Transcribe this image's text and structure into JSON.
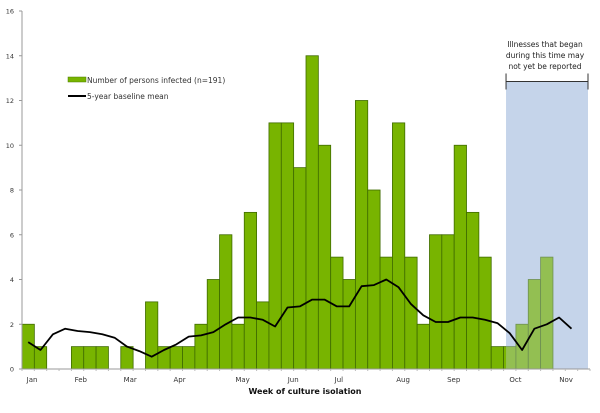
{
  "chart_data": {
    "type": "bar",
    "title": "",
    "xlabel": "Week of culture isolation",
    "ylabel": "",
    "ylim": [
      0,
      16
    ],
    "yticks": [
      0,
      2,
      4,
      6,
      8,
      10,
      12,
      14,
      16
    ],
    "num_weeks": 46,
    "month_ticks": [
      {
        "label": "Jan",
        "week": 0.65
      },
      {
        "label": "Feb",
        "week": 4.6
      },
      {
        "label": "Mar",
        "week": 8.6
      },
      {
        "label": "Apr",
        "week": 12.6
      },
      {
        "label": "May",
        "week": 17.7
      },
      {
        "label": "Jun",
        "week": 21.8
      },
      {
        "label": "Jul",
        "week": 25.5
      },
      {
        "label": "Aug",
        "week": 30.7
      },
      {
        "label": "Sep",
        "week": 34.8
      },
      {
        "label": "Oct",
        "week": 39.8
      },
      {
        "label": "Nov",
        "week": 43.9
      }
    ],
    "series": [
      {
        "name": "Number of persons infected (n=191)",
        "type": "bar",
        "color": "#78b400",
        "values": [
          2,
          1,
          0,
          0,
          1,
          1,
          1,
          0,
          1,
          0,
          3,
          1,
          1,
          1,
          2,
          4,
          6,
          2,
          7,
          3,
          11,
          11,
          9,
          14,
          10,
          5,
          4,
          12,
          8,
          5,
          11,
          5,
          2,
          6,
          6,
          10,
          7,
          5,
          1,
          1,
          2,
          4,
          5
        ]
      },
      {
        "name": "5-year baseline mean",
        "type": "line",
        "color": "#000000",
        "values": [
          1.2,
          0.85,
          1.55,
          1.8,
          1.7,
          1.65,
          1.55,
          1.4,
          1.0,
          0.8,
          0.55,
          0.85,
          1.1,
          1.45,
          1.5,
          1.65,
          2.0,
          2.3,
          2.3,
          2.2,
          1.9,
          2.75,
          2.8,
          3.1,
          3.1,
          2.8,
          2.8,
          3.7,
          3.75,
          4.0,
          3.65,
          2.9,
          2.4,
          2.1,
          2.1,
          2.3,
          2.3,
          2.2,
          2.05,
          1.6,
          0.85,
          1.8,
          2.0,
          2.3,
          1.8
        ]
      }
    ],
    "shaded_region": {
      "start_week": 39.2,
      "end_week": 46,
      "color": "#c5d5ea",
      "annotation": [
        "Illnesses that began",
        "during this time may",
        "not yet be reported"
      ]
    },
    "legend": {
      "placement": "top-left"
    }
  }
}
